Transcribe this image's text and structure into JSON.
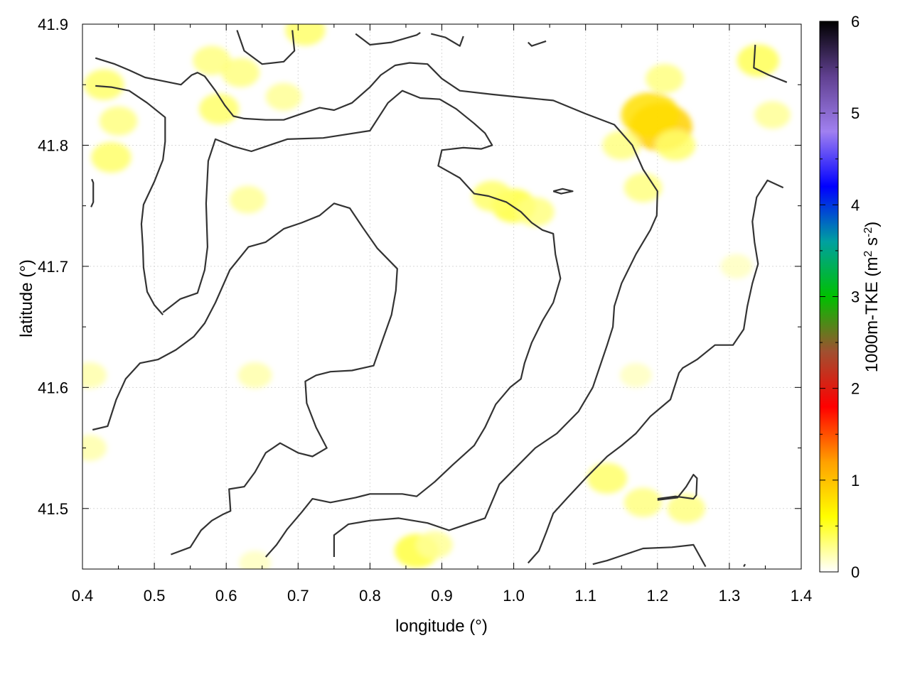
{
  "chart_data": {
    "type": "heatmap",
    "title": "",
    "xlabel": "longitude (°)",
    "ylabel": "latitude (°)",
    "colorbar_label": "1000m-TKE (m² s⁻²)",
    "colorbar_label_parts": {
      "prefix": "1000m-TKE (m",
      "sup1": "2",
      "mid": " s",
      "sup2": "-2",
      "suffix": ")"
    },
    "xlim": [
      0.4,
      1.4
    ],
    "ylim": [
      41.45,
      41.9
    ],
    "x_ticks": [
      "0.4",
      "0.5",
      "0.6",
      "0.7",
      "0.8",
      "0.9",
      "1.0",
      "1.1",
      "1.2",
      "1.3",
      "1.4"
    ],
    "y_ticks": [
      "41.5",
      "41.6",
      "41.7",
      "41.8",
      "41.9"
    ],
    "colorbar_ticks": [
      "0",
      "1",
      "2",
      "3",
      "4",
      "5",
      "6"
    ],
    "colorbar_range": [
      0,
      6
    ],
    "colormap": [
      "#ffffff",
      "#ffff00",
      "#ffa000",
      "#ff0000",
      "#a05030",
      "#00c000",
      "#00a0a0",
      "#0000ff",
      "#a080f0",
      "#604090",
      "#000000"
    ],
    "grid": true,
    "contour_color": "#333333",
    "tke_hotspots": [
      {
        "lon": 1.205,
        "lat": 41.815,
        "value": 0.9
      },
      {
        "lon": 1.19,
        "lat": 41.825,
        "value": 0.8
      },
      {
        "lon": 1.225,
        "lat": 41.8,
        "value": 0.35
      },
      {
        "lon": 1.21,
        "lat": 41.855,
        "value": 0.3
      },
      {
        "lon": 1.15,
        "lat": 41.8,
        "value": 0.3
      },
      {
        "lon": 1.18,
        "lat": 41.765,
        "value": 0.3
      },
      {
        "lon": 1.0,
        "lat": 41.75,
        "value": 0.45
      },
      {
        "lon": 0.97,
        "lat": 41.758,
        "value": 0.35
      },
      {
        "lon": 1.03,
        "lat": 41.745,
        "value": 0.3
      },
      {
        "lon": 0.43,
        "lat": 41.85,
        "value": 0.35
      },
      {
        "lon": 0.44,
        "lat": 41.79,
        "value": 0.35
      },
      {
        "lon": 0.45,
        "lat": 41.82,
        "value": 0.3
      },
      {
        "lon": 0.59,
        "lat": 41.83,
        "value": 0.35
      },
      {
        "lon": 0.58,
        "lat": 41.87,
        "value": 0.3
      },
      {
        "lon": 0.62,
        "lat": 41.86,
        "value": 0.3
      },
      {
        "lon": 0.71,
        "lat": 41.895,
        "value": 0.35
      },
      {
        "lon": 0.68,
        "lat": 41.84,
        "value": 0.25
      },
      {
        "lon": 0.63,
        "lat": 41.755,
        "value": 0.25
      },
      {
        "lon": 1.34,
        "lat": 41.87,
        "value": 0.4
      },
      {
        "lon": 1.36,
        "lat": 41.825,
        "value": 0.25
      },
      {
        "lon": 1.13,
        "lat": 41.525,
        "value": 0.35
      },
      {
        "lon": 1.18,
        "lat": 41.505,
        "value": 0.3
      },
      {
        "lon": 1.24,
        "lat": 41.5,
        "value": 0.3
      },
      {
        "lon": 0.865,
        "lat": 41.465,
        "value": 0.45
      },
      {
        "lon": 0.89,
        "lat": 41.47,
        "value": 0.25
      },
      {
        "lon": 0.64,
        "lat": 41.61,
        "value": 0.2
      },
      {
        "lon": 0.41,
        "lat": 41.55,
        "value": 0.2
      },
      {
        "lon": 0.41,
        "lat": 41.61,
        "value": 0.2
      },
      {
        "lon": 1.31,
        "lat": 41.7,
        "value": 0.15
      },
      {
        "lon": 0.64,
        "lat": 41.455,
        "value": 0.15
      },
      {
        "lon": 1.17,
        "lat": 41.61,
        "value": 0.15
      }
    ],
    "contours": [
      [
        [
          0.418,
          41.872
        ],
        [
          0.445,
          41.867
        ],
        [
          0.465,
          41.862
        ],
        [
          0.487,
          41.856
        ],
        [
          0.512,
          41.853
        ],
        [
          0.537,
          41.85
        ],
        [
          0.552,
          41.858
        ],
        [
          0.56,
          41.86
        ],
        [
          0.57,
          41.857
        ],
        [
          0.585,
          41.845
        ],
        [
          0.598,
          41.833
        ],
        [
          0.61,
          41.824
        ],
        [
          0.625,
          41.822
        ],
        [
          0.655,
          41.821
        ],
        [
          0.68,
          41.821
        ],
        [
          0.705,
          41.826
        ],
        [
          0.73,
          41.831
        ],
        [
          0.75,
          41.829
        ],
        [
          0.775,
          41.835
        ],
        [
          0.8,
          41.848
        ],
        [
          0.815,
          41.858
        ],
        [
          0.835,
          41.866
        ],
        [
          0.855,
          41.868
        ],
        [
          0.88,
          41.867
        ],
        [
          0.9,
          41.855
        ],
        [
          0.925,
          41.845
        ],
        [
          0.97,
          41.842
        ],
        [
          1.02,
          41.839
        ],
        [
          1.055,
          41.837
        ],
        [
          1.1,
          41.826
        ],
        [
          1.14,
          41.817
        ],
        [
          1.165,
          41.8
        ],
        [
          1.18,
          41.78
        ],
        [
          1.2,
          41.762
        ],
        [
          1.199,
          41.742
        ],
        [
          1.19,
          41.73
        ],
        [
          1.17,
          41.71
        ],
        [
          1.15,
          41.686
        ],
        [
          1.14,
          41.667
        ],
        [
          1.138,
          41.65
        ],
        [
          1.13,
          41.635
        ],
        [
          1.11,
          41.6
        ],
        [
          1.09,
          41.58
        ],
        [
          1.06,
          41.562
        ],
        [
          1.03,
          41.55
        ],
        [
          1.0,
          41.532
        ],
        [
          0.98,
          41.52
        ],
        [
          0.96,
          41.492
        ],
        [
          0.94,
          41.488
        ],
        [
          0.91,
          41.482
        ],
        [
          0.88,
          41.488
        ],
        [
          0.84,
          41.492
        ],
        [
          0.8,
          41.49
        ],
        [
          0.77,
          41.487
        ],
        [
          0.75,
          41.478
        ],
        [
          0.75,
          41.46
        ]
      ],
      [
        [
          0.418,
          41.849
        ],
        [
          0.44,
          41.848
        ],
        [
          0.465,
          41.845
        ],
        [
          0.49,
          41.835
        ],
        [
          0.515,
          41.823
        ],
        [
          0.515,
          41.803
        ],
        [
          0.512,
          41.788
        ],
        [
          0.5,
          41.77
        ],
        [
          0.485,
          41.751
        ],
        [
          0.482,
          41.735
        ],
        [
          0.484,
          41.716
        ],
        [
          0.485,
          41.699
        ],
        [
          0.49,
          41.679
        ],
        [
          0.5,
          41.668
        ],
        [
          0.512,
          41.66
        ]
      ],
      [
        [
          0.512,
          41.662
        ],
        [
          0.536,
          41.673
        ],
        [
          0.56,
          41.678
        ],
        [
          0.57,
          41.697
        ],
        [
          0.574,
          41.716
        ],
        [
          0.572,
          41.752
        ],
        [
          0.575,
          41.787
        ],
        [
          0.585,
          41.805
        ],
        [
          0.61,
          41.799
        ],
        [
          0.635,
          41.795
        ],
        [
          0.66,
          41.8
        ],
        [
          0.685,
          41.805
        ],
        [
          0.735,
          41.806
        ],
        [
          0.8,
          41.812
        ],
        [
          0.825,
          41.835
        ],
        [
          0.845,
          41.845
        ],
        [
          0.87,
          41.839
        ],
        [
          0.897,
          41.838
        ],
        [
          0.92,
          41.83
        ],
        [
          0.945,
          41.818
        ],
        [
          0.96,
          41.81
        ],
        [
          0.97,
          41.8
        ],
        [
          0.955,
          41.797
        ],
        [
          0.93,
          41.798
        ],
        [
          0.9,
          41.796
        ],
        [
          0.895,
          41.783
        ],
        [
          0.925,
          41.773
        ],
        [
          0.945,
          41.76
        ],
        [
          0.965,
          41.758
        ],
        [
          0.99,
          41.753
        ],
        [
          1.01,
          41.745
        ],
        [
          1.025,
          41.736
        ],
        [
          1.04,
          41.73
        ],
        [
          1.055,
          41.727
        ],
        [
          1.058,
          41.71
        ],
        [
          1.065,
          41.69
        ],
        [
          1.055,
          41.67
        ],
        [
          1.04,
          41.655
        ],
        [
          1.025,
          41.637
        ],
        [
          1.015,
          41.62
        ],
        [
          1.01,
          41.607
        ],
        [
          0.995,
          41.6
        ],
        [
          0.975,
          41.586
        ],
        [
          0.96,
          41.567
        ],
        [
          0.945,
          41.552
        ],
        [
          0.915,
          41.536
        ],
        [
          0.89,
          41.522
        ],
        [
          0.865,
          41.51
        ],
        [
          0.845,
          41.512
        ],
        [
          0.8,
          41.512
        ],
        [
          0.78,
          41.509
        ],
        [
          0.745,
          41.505
        ],
        [
          0.72,
          41.508
        ],
        [
          0.705,
          41.497
        ],
        [
          0.685,
          41.483
        ],
        [
          0.67,
          41.47
        ],
        [
          0.655,
          41.46
        ]
      ],
      [
        [
          0.414,
          41.565
        ],
        [
          0.435,
          41.568
        ],
        [
          0.447,
          41.59
        ],
        [
          0.46,
          41.607
        ],
        [
          0.48,
          41.62
        ],
        [
          0.505,
          41.623
        ],
        [
          0.53,
          41.631
        ],
        [
          0.555,
          41.642
        ],
        [
          0.57,
          41.653
        ],
        [
          0.585,
          41.67
        ],
        [
          0.605,
          41.697
        ],
        [
          0.631,
          41.716
        ],
        [
          0.655,
          41.72
        ],
        [
          0.68,
          41.731
        ],
        [
          0.705,
          41.736
        ],
        [
          0.73,
          41.742
        ],
        [
          0.75,
          41.752
        ],
        [
          0.772,
          41.748
        ],
        [
          0.79,
          41.732
        ],
        [
          0.81,
          41.715
        ],
        [
          0.838,
          41.698
        ],
        [
          0.836,
          41.68
        ],
        [
          0.83,
          41.66
        ],
        [
          0.818,
          41.64
        ],
        [
          0.805,
          41.618
        ],
        [
          0.775,
          41.614
        ],
        [
          0.745,
          41.613
        ],
        [
          0.725,
          41.61
        ],
        [
          0.71,
          41.605
        ],
        [
          0.712,
          41.587
        ],
        [
          0.725,
          41.567
        ],
        [
          0.74,
          41.55
        ],
        [
          0.72,
          41.543
        ],
        [
          0.7,
          41.546
        ],
        [
          0.675,
          41.554
        ],
        [
          0.655,
          41.546
        ],
        [
          0.64,
          41.53
        ],
        [
          0.625,
          41.518
        ],
        [
          0.604,
          41.516
        ],
        [
          0.606,
          41.498
        ],
        [
          0.595,
          41.495
        ],
        [
          0.58,
          41.49
        ],
        [
          0.565,
          41.482
        ],
        [
          0.55,
          41.468
        ],
        [
          0.523,
          41.462
        ]
      ],
      [
        [
          1.02,
          41.455
        ],
        [
          1.035,
          41.465
        ],
        [
          1.045,
          41.48
        ],
        [
          1.055,
          41.496
        ],
        [
          1.075,
          41.509
        ],
        [
          1.1,
          41.525
        ],
        [
          1.13,
          41.543
        ],
        [
          1.15,
          41.552
        ],
        [
          1.17,
          41.562
        ],
        [
          1.19,
          41.576
        ],
        [
          1.218,
          41.59
        ],
        [
          1.23,
          41.612
        ],
        [
          1.235,
          41.616
        ],
        [
          1.255,
          41.623
        ],
        [
          1.28,
          41.635
        ],
        [
          1.305,
          41.635
        ],
        [
          1.32,
          41.648
        ],
        [
          1.325,
          41.667
        ],
        [
          1.332,
          41.686
        ],
        [
          1.34,
          41.702
        ],
        [
          1.335,
          41.72
        ],
        [
          1.332,
          41.737
        ],
        [
          1.338,
          41.757
        ],
        [
          1.353,
          41.771
        ],
        [
          1.375,
          41.765
        ]
      ],
      [
        [
          1.11,
          41.454
        ],
        [
          1.13,
          41.457
        ],
        [
          1.155,
          41.462
        ],
        [
          1.18,
          41.467
        ],
        [
          1.22,
          41.468
        ],
        [
          1.25,
          41.47
        ],
        [
          1.267,
          41.452
        ]
      ],
      [
        [
          1.2,
          41.508
        ],
        [
          1.225,
          41.51
        ],
        [
          1.25,
          41.508
        ],
        [
          1.254,
          41.511
        ],
        [
          1.255,
          41.525
        ],
        [
          1.25,
          41.528
        ],
        [
          1.24,
          41.518
        ],
        [
          1.228,
          41.509
        ],
        [
          1.2,
          41.507
        ]
      ],
      [
        [
          1.055,
          41.762
        ],
        [
          1.068,
          41.764
        ],
        [
          1.082,
          41.762
        ],
        [
          1.066,
          41.76
        ],
        [
          1.055,
          41.762
        ]
      ],
      [
        [
          1.336,
          41.883
        ],
        [
          1.334,
          41.864
        ],
        [
          1.355,
          41.858
        ],
        [
          1.38,
          41.852
        ]
      ],
      [
        [
          0.615,
          41.895
        ],
        [
          0.625,
          41.878
        ],
        [
          0.65,
          41.867
        ],
        [
          0.68,
          41.869
        ],
        [
          0.695,
          41.878
        ],
        [
          0.692,
          41.895
        ]
      ],
      [
        [
          0.78,
          41.892
        ],
        [
          0.8,
          41.883
        ],
        [
          0.83,
          41.885
        ],
        [
          0.865,
          41.891
        ],
        [
          0.87,
          41.893
        ]
      ],
      [
        [
          0.885,
          41.892
        ],
        [
          0.905,
          41.889
        ],
        [
          0.925,
          41.882
        ],
        [
          0.93,
          41.89
        ]
      ],
      [
        [
          1.02,
          41.885
        ],
        [
          1.025,
          41.882
        ],
        [
          1.045,
          41.886
        ]
      ],
      [
        [
          0.413,
          41.772
        ],
        [
          0.415,
          41.769
        ],
        [
          0.415,
          41.753
        ],
        [
          0.412,
          41.749
        ]
      ],
      [
        [
          1.32,
          41.452
        ],
        [
          1.322,
          41.454
        ]
      ]
    ]
  }
}
